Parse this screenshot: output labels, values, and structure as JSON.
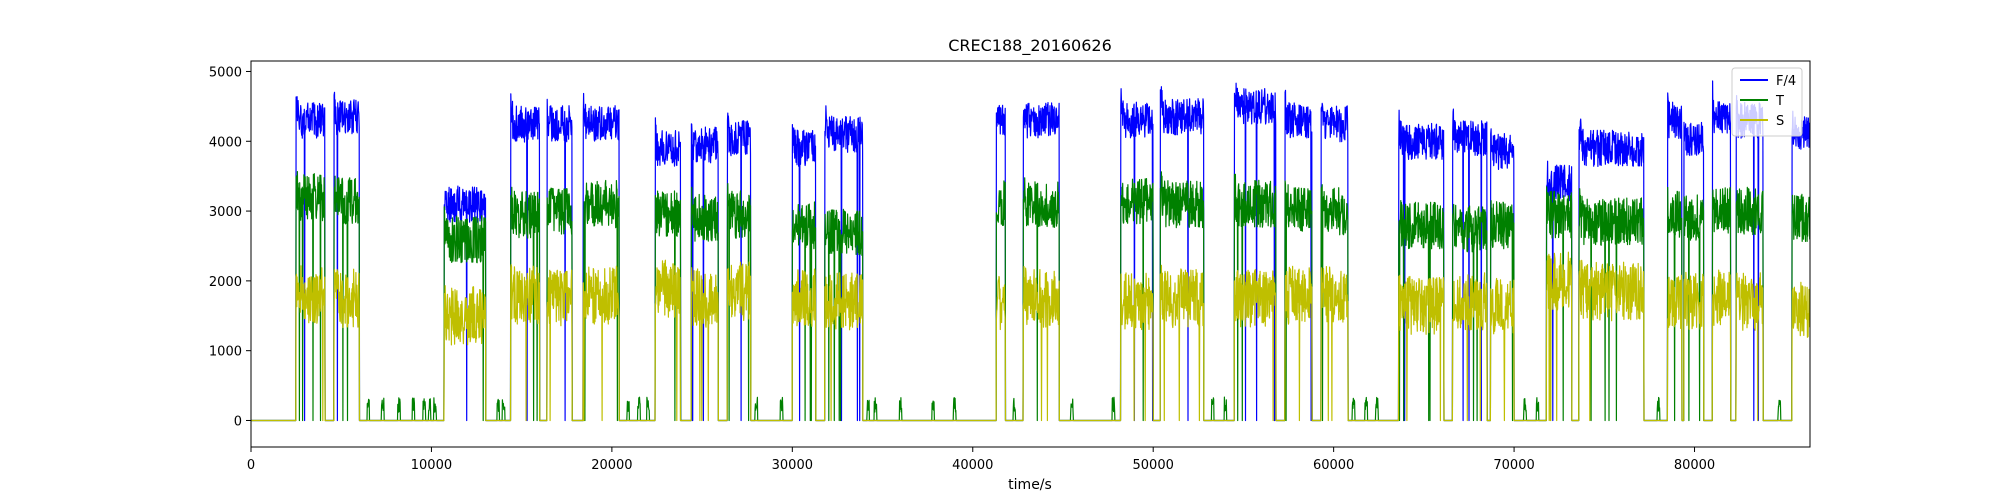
{
  "chart_data": {
    "type": "line",
    "title": "CREC188_20160626",
    "xlabel": "time/s",
    "ylabel": "",
    "xlim": [
      0,
      86400
    ],
    "ylim": [
      -380,
      5150
    ],
    "xticks": [
      0,
      10000,
      20000,
      30000,
      40000,
      50000,
      60000,
      70000,
      80000
    ],
    "yticks": [
      0,
      1000,
      2000,
      3000,
      4000,
      5000
    ],
    "grid": false,
    "legend_position": "top-right",
    "activity_segments": [
      {
        "x": [
          2500,
          4100
        ],
        "f4": 4300,
        "t": 3200,
        "s": 1800
      },
      {
        "x": [
          4600,
          6000
        ],
        "f4": 4350,
        "t": 3150,
        "s": 1750
      },
      {
        "x": [
          10700,
          13000
        ],
        "f4": 3100,
        "t": 2600,
        "s": 1500
      },
      {
        "x": [
          14400,
          16000
        ],
        "f4": 4250,
        "t": 2950,
        "s": 1800
      },
      {
        "x": [
          16400,
          17800
        ],
        "f4": 4250,
        "t": 3000,
        "s": 1750
      },
      {
        "x": [
          18400,
          20400
        ],
        "f4": 4250,
        "t": 3100,
        "s": 1800
      },
      {
        "x": [
          22400,
          23800
        ],
        "f4": 3900,
        "t": 2950,
        "s": 1900
      },
      {
        "x": [
          24400,
          25900
        ],
        "f4": 3950,
        "t": 2900,
        "s": 1750
      },
      {
        "x": [
          26400,
          27700
        ],
        "f4": 4050,
        "t": 2950,
        "s": 1850
      },
      {
        "x": [
          30000,
          31300
        ],
        "f4": 3900,
        "t": 2800,
        "s": 1750
      },
      {
        "x": [
          31800,
          33900
        ],
        "f4": 4100,
        "t": 2700,
        "s": 1700
      },
      {
        "x": [
          41300,
          41800
        ],
        "f4": 4300,
        "t": 3100,
        "s": 1700
      },
      {
        "x": [
          42800,
          44800
        ],
        "f4": 4300,
        "t": 3100,
        "s": 1750
      },
      {
        "x": [
          48200,
          50000
        ],
        "f4": 4300,
        "t": 3150,
        "s": 1700
      },
      {
        "x": [
          50400,
          52800
        ],
        "f4": 4350,
        "t": 3100,
        "s": 1750
      },
      {
        "x": [
          54500,
          56800
        ],
        "f4": 4500,
        "t": 3100,
        "s": 1750
      },
      {
        "x": [
          57300,
          58800
        ],
        "f4": 4300,
        "t": 3050,
        "s": 1800
      },
      {
        "x": [
          59300,
          60800
        ],
        "f4": 4250,
        "t": 3000,
        "s": 1800
      },
      {
        "x": [
          63600,
          66100
        ],
        "f4": 4000,
        "t": 2800,
        "s": 1650
      },
      {
        "x": [
          66600,
          68500
        ],
        "f4": 4050,
        "t": 2750,
        "s": 1700
      },
      {
        "x": [
          68700,
          70000
        ],
        "f4": 3850,
        "t": 2800,
        "s": 1650
      },
      {
        "x": [
          71800,
          73200
        ],
        "f4": 3400,
        "t": 2950,
        "s": 2000
      },
      {
        "x": [
          73600,
          77200
        ],
        "f4": 3900,
        "t": 2850,
        "s": 1850
      },
      {
        "x": [
          78500,
          79300
        ],
        "f4": 4300,
        "t": 2950,
        "s": 1700
      },
      {
        "x": [
          79400,
          80500
        ],
        "f4": 4050,
        "t": 2900,
        "s": 1700
      },
      {
        "x": [
          81000,
          82000
        ],
        "f4": 4350,
        "t": 3000,
        "s": 1750
      },
      {
        "x": [
          82300,
          83800
        ],
        "f4": 4300,
        "t": 3000,
        "s": 1700
      },
      {
        "x": [
          85400,
          86400
        ],
        "f4": 4100,
        "t": 2900,
        "s": 1600
      }
    ],
    "t_blips": [
      6500,
      7300,
      8200,
      9000,
      9600,
      9900,
      10200,
      13700,
      14000,
      20900,
      21500,
      22000,
      28000,
      29400,
      34200,
      34600,
      36000,
      37800,
      39000,
      42300,
      45500,
      47800,
      53300,
      54000,
      61100,
      61800,
      62400,
      70600,
      71300,
      78000,
      81500,
      84700
    ],
    "series": [
      {
        "name": "F/4",
        "color": "#0000ff"
      },
      {
        "name": "T",
        "color": "#008000"
      },
      {
        "name": "S",
        "color": "#bfbf00"
      }
    ]
  }
}
